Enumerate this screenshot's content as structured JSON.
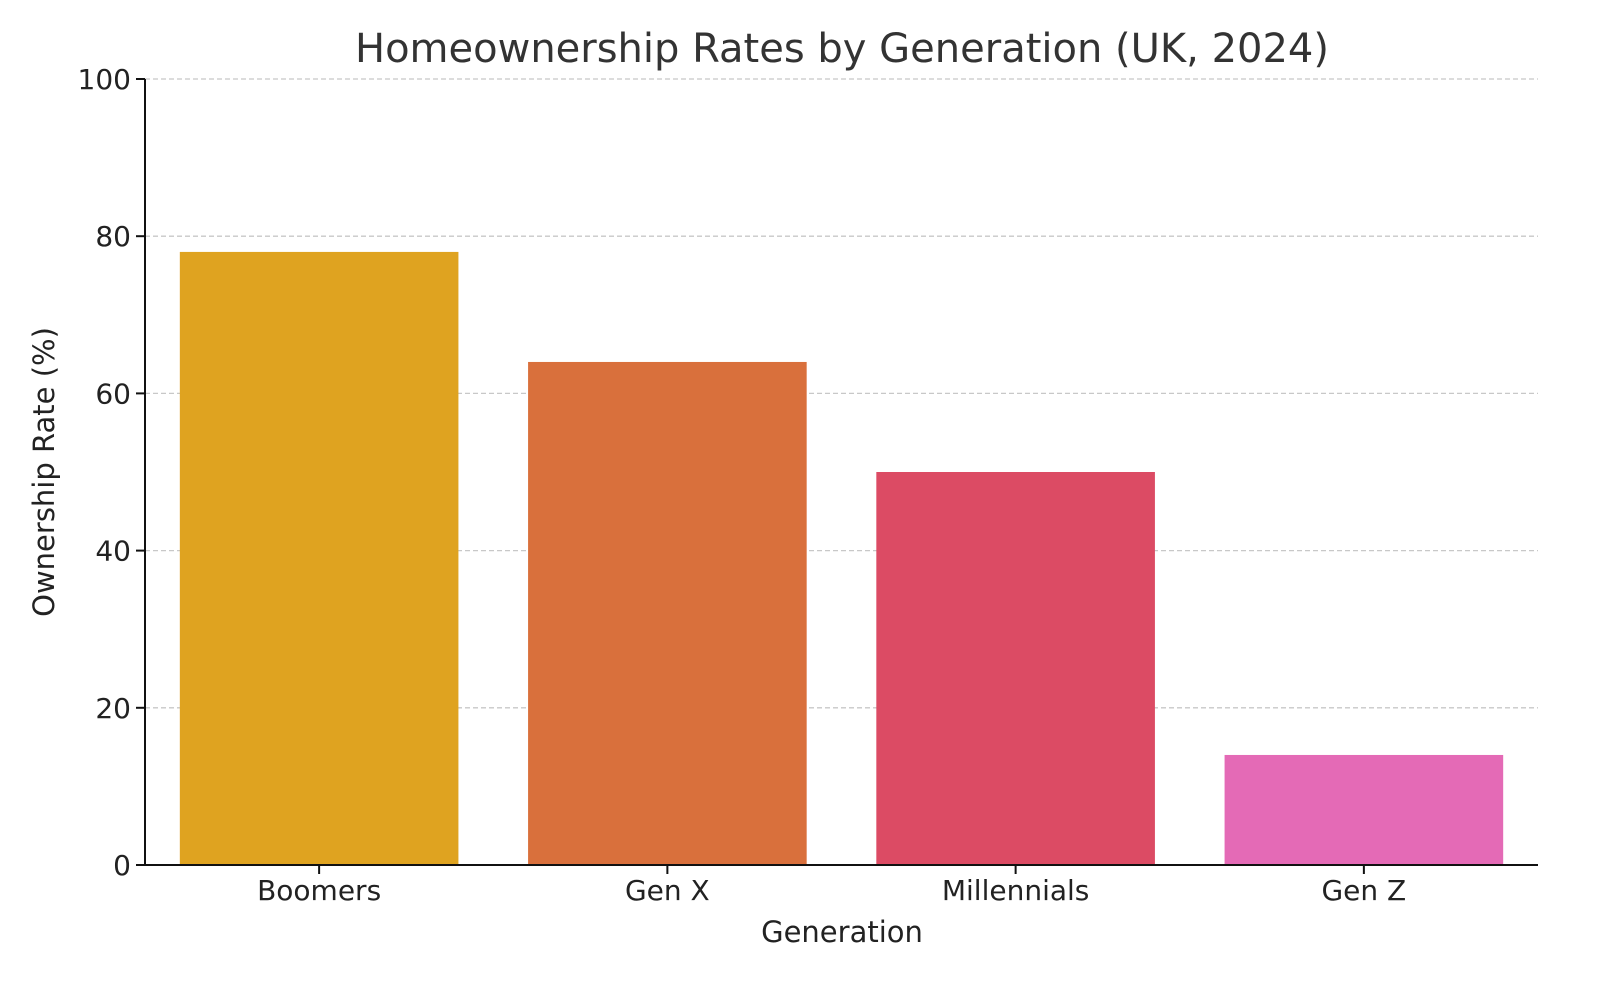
{
  "chart_data": {
    "type": "bar",
    "title": "Homeownership Rates by Generation (UK, 2024)",
    "xlabel": "Generation",
    "ylabel": "Ownership Rate (%)",
    "categories": [
      "Boomers",
      "Gen X",
      "Millennials",
      "Gen Z"
    ],
    "values": [
      78,
      64,
      50,
      14
    ],
    "colors": [
      "#DFA320",
      "#D9703C",
      "#DC4B64",
      "#E46AB6"
    ],
    "ylim": [
      0,
      100
    ],
    "yticks": [
      "0",
      "20",
      "40",
      "60",
      "80",
      "100"
    ],
    "grid": "y-dashed",
    "legend": "none"
  }
}
